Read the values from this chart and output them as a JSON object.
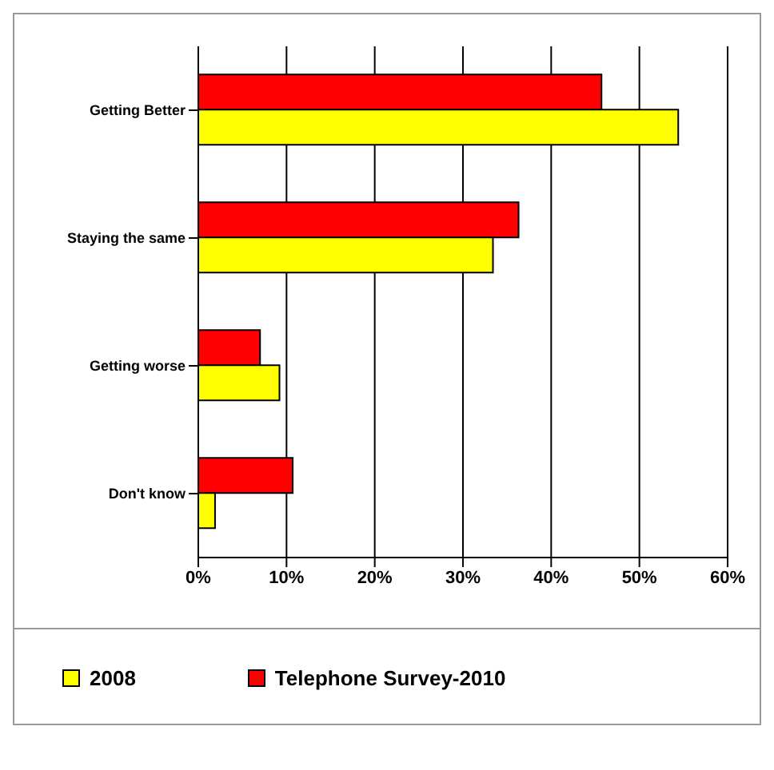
{
  "chart_data": {
    "type": "bar",
    "orientation": "horizontal",
    "categories": [
      "Getting Better",
      "Staying the same",
      "Getting worse",
      "Don't know"
    ],
    "series": [
      {
        "name": "2008",
        "color": "#ffff00",
        "values": [
          54.4,
          33.4,
          9.2,
          1.9
        ]
      },
      {
        "name": "Telephone Survey-2010",
        "color": "#ff0000",
        "values": [
          45.7,
          36.3,
          7.0,
          10.7
        ]
      }
    ],
    "xlim": [
      0,
      60
    ],
    "xticks": [
      {
        "value": 0,
        "label": "0%"
      },
      {
        "value": 10,
        "label": "10%"
      },
      {
        "value": 20,
        "label": "20%"
      },
      {
        "value": 30,
        "label": "30%"
      },
      {
        "value": 40,
        "label": "40%"
      },
      {
        "value": 50,
        "label": "50%"
      },
      {
        "value": 60,
        "label": "60%"
      }
    ],
    "grid": "x",
    "legend": "bottom"
  }
}
